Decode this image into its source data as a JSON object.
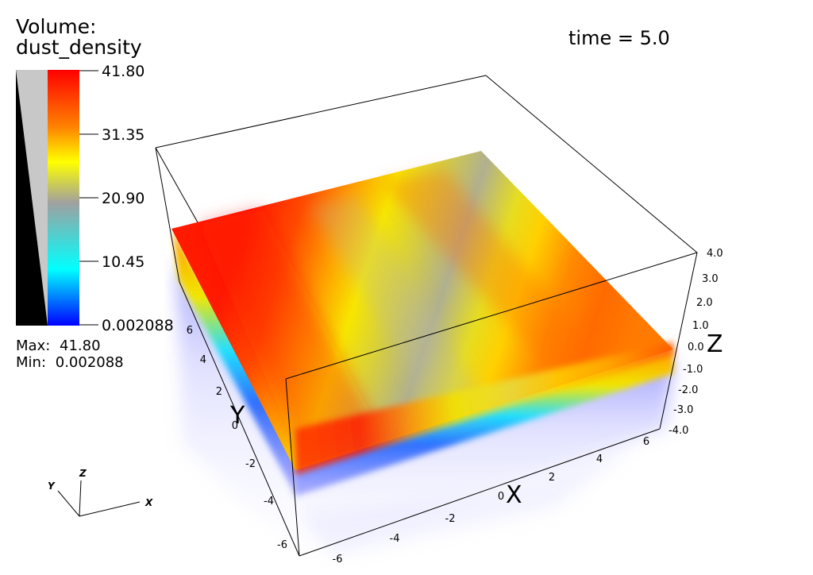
{
  "legend": {
    "title_line1": "Volume:",
    "title_line2": "dust_density",
    "labels": [
      "41.80",
      "31.35",
      "20.90",
      "10.45",
      "0.002088"
    ],
    "max_label": "Max:",
    "max_value": "41.80",
    "min_label": "Min:",
    "min_value": "0.002088",
    "colormap": [
      "#ff0000",
      "#ff8000",
      "#ffff00",
      "#a0a0a0",
      "#00ffff",
      "#0000ff"
    ]
  },
  "time_label": "time = 5.0",
  "axes": {
    "x_name": "X",
    "y_name": "Y",
    "z_name": "Z",
    "x_ticks": [
      "-6",
      "-4",
      "-2",
      "0",
      "2",
      "4",
      "6"
    ],
    "y_ticks": [
      "-6",
      "-4",
      "-2",
      "0",
      "2",
      "4",
      "6"
    ],
    "z_ticks": [
      "4.0",
      "3.0",
      "2.0",
      "1.0",
      "0.0",
      "-1.0",
      "-2.0",
      "-3.0",
      "-4.0"
    ]
  },
  "orientation": {
    "x": "X",
    "y": "Y",
    "z": "Z"
  }
}
